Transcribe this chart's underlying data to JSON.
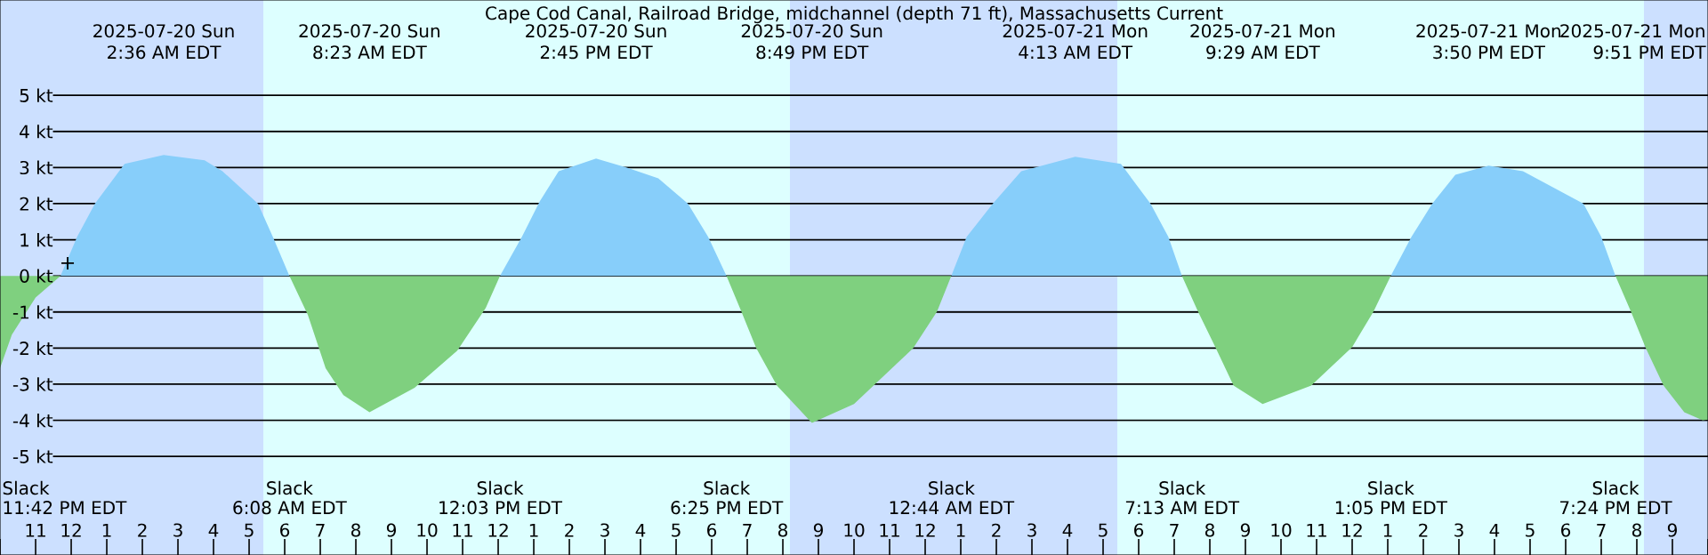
{
  "chart_data": {
    "type": "area",
    "title": "Cape Cod Canal, Railroad Bridge, midchannel (depth 71 ft), Massachusetts Current",
    "xlim": [
      "2025-07-19T22:00",
      "2025-07-21T22:00"
    ],
    "ylim": [
      -7.73,
      7.64
    ],
    "xticks": [
      {
        "value": "2025-07-19T22:00",
        "label": null
      },
      {
        "value": "2025-07-19T23:00",
        "label": "11"
      },
      {
        "value": "2025-07-20T00:00",
        "label": "12"
      },
      {
        "value": "2025-07-20T01:00",
        "label": "1"
      },
      {
        "value": "2025-07-20T02:00",
        "label": "2"
      },
      {
        "value": "2025-07-20T03:00",
        "label": "3"
      },
      {
        "value": "2025-07-20T04:00",
        "label": "4"
      },
      {
        "value": "2025-07-20T05:00",
        "label": "5"
      },
      {
        "value": "2025-07-20T06:00",
        "label": "6"
      },
      {
        "value": "2025-07-20T07:00",
        "label": "7"
      },
      {
        "value": "2025-07-20T08:00",
        "label": "8"
      },
      {
        "value": "2025-07-20T09:00",
        "label": "9"
      },
      {
        "value": "2025-07-20T10:00",
        "label": "10"
      },
      {
        "value": "2025-07-20T11:00",
        "label": "11"
      },
      {
        "value": "2025-07-20T12:00",
        "label": "12"
      },
      {
        "value": "2025-07-20T13:00",
        "label": "1"
      },
      {
        "value": "2025-07-20T14:00",
        "label": "2"
      },
      {
        "value": "2025-07-20T15:00",
        "label": "3"
      },
      {
        "value": "2025-07-20T16:00",
        "label": "4"
      },
      {
        "value": "2025-07-20T17:00",
        "label": "5"
      },
      {
        "value": "2025-07-20T18:00",
        "label": "6"
      },
      {
        "value": "2025-07-20T19:00",
        "label": "7"
      },
      {
        "value": "2025-07-20T20:00",
        "label": "8"
      },
      {
        "value": "2025-07-20T21:00",
        "label": "9"
      },
      {
        "value": "2025-07-20T22:00",
        "label": "10"
      },
      {
        "value": "2025-07-20T23:00",
        "label": "11"
      },
      {
        "value": "2025-07-21T00:00",
        "label": "12"
      },
      {
        "value": "2025-07-21T01:00",
        "label": "1"
      },
      {
        "value": "2025-07-21T02:00",
        "label": "2"
      },
      {
        "value": "2025-07-21T03:00",
        "label": "3"
      },
      {
        "value": "2025-07-21T04:00",
        "label": "4"
      },
      {
        "value": "2025-07-21T05:00",
        "label": "5"
      },
      {
        "value": "2025-07-21T06:00",
        "label": "6"
      },
      {
        "value": "2025-07-21T07:00",
        "label": "7"
      },
      {
        "value": "2025-07-21T08:00",
        "label": "8"
      },
      {
        "value": "2025-07-21T09:00",
        "label": "9"
      },
      {
        "value": "2025-07-21T10:00",
        "label": "10"
      },
      {
        "value": "2025-07-21T11:00",
        "label": "11"
      },
      {
        "value": "2025-07-21T12:00",
        "label": "12"
      },
      {
        "value": "2025-07-21T13:00",
        "label": "1"
      },
      {
        "value": "2025-07-21T14:00",
        "label": "2"
      },
      {
        "value": "2025-07-21T15:00",
        "label": "3"
      },
      {
        "value": "2025-07-21T16:00",
        "label": "4"
      },
      {
        "value": "2025-07-21T17:00",
        "label": "5"
      },
      {
        "value": "2025-07-21T18:00",
        "label": "6"
      },
      {
        "value": "2025-07-21T19:00",
        "label": "7"
      },
      {
        "value": "2025-07-21T20:00",
        "label": "8"
      },
      {
        "value": "2025-07-21T21:00",
        "label": "9"
      },
      {
        "value": "2025-07-21T22:00",
        "label": null
      }
    ],
    "yticks": [
      {
        "value": -5,
        "label": "-5 kt"
      },
      {
        "value": -4,
        "label": "-4 kt"
      },
      {
        "value": -3,
        "label": "-3 kt"
      },
      {
        "value": -2,
        "label": "-2 kt"
      },
      {
        "value": -1,
        "label": "-1 kt"
      },
      {
        "value": 0,
        "label": "0 kt"
      },
      {
        "value": 1,
        "label": "1 kt"
      },
      {
        "value": 2,
        "label": "2 kt"
      },
      {
        "value": 3,
        "label": "3 kt"
      },
      {
        "value": 4,
        "label": "4 kt"
      },
      {
        "value": 5,
        "label": "5 kt"
      }
    ],
    "grid": "y",
    "bands": [
      {
        "axis": "x",
        "from": "2025-07-19T22:00",
        "to": "2025-07-20T05:24",
        "color": "#cce0ff"
      },
      {
        "axis": "x",
        "from": "2025-07-20T20:12",
        "to": "2025-07-21T05:24",
        "color": "#cce0ff"
      },
      {
        "axis": "x",
        "from": "2025-07-21T20:12",
        "to": "2025-07-21T22:00",
        "color": "#cce0ff"
      }
    ],
    "series": [
      {
        "color": "#87cefa",
        "x": [
          "2025-07-19T23:42",
          "2025-07-20T00:10",
          "2025-07-20T00:40",
          "2025-07-20T01:30",
          "2025-07-20T02:36",
          "2025-07-20T03:45",
          "2025-07-20T04:15",
          "2025-07-20T05:15",
          "2025-07-20T05:40",
          "2025-07-20T06:08",
          "2025-07-20T09:00",
          "2025-07-20T12:03",
          "2025-07-20T12:40",
          "2025-07-20T13:10",
          "2025-07-20T13:42",
          "2025-07-20T14:45",
          "2025-07-20T15:36",
          "2025-07-20T16:30",
          "2025-07-20T17:20",
          "2025-07-20T17:54",
          "2025-07-20T18:25",
          "2025-07-20T21:00",
          "2025-07-21T00:44",
          "2025-07-21T01:10",
          "2025-07-21T01:54",
          "2025-07-21T02:42",
          "2025-07-21T04:13",
          "2025-07-21T05:30",
          "2025-07-21T06:20",
          "2025-07-21T06:50",
          "2025-07-21T07:13",
          "2025-07-21T10:00",
          "2025-07-21T13:05",
          "2025-07-21T13:40",
          "2025-07-21T14:15",
          "2025-07-21T14:54",
          "2025-07-21T15:50",
          "2025-07-21T16:48",
          "2025-07-21T18:30",
          "2025-07-21T19:00",
          "2025-07-21T19:24"
        ],
        "values": [
          0,
          1.08,
          2.0,
          3.1,
          3.35,
          3.2,
          2.9,
          2.0,
          1.08,
          0,
          null,
          0,
          1.08,
          2.06,
          2.9,
          3.25,
          3.0,
          2.7,
          2.0,
          1.08,
          0,
          null,
          0,
          1.08,
          2.0,
          2.9,
          3.3,
          3.1,
          2.0,
          1.08,
          0,
          null,
          0,
          1.08,
          2.0,
          2.8,
          3.05,
          2.9,
          2.0,
          1.08,
          0
        ]
      },
      {
        "color": "#7fd07f",
        "x": [
          "2025-07-19T22:00",
          "2025-07-19T22:20",
          "2025-07-19T23:00",
          "2025-07-19T23:42",
          "2025-07-20T03:00",
          "2025-07-20T06:08",
          "2025-07-20T06:39",
          "2025-07-20T07:09",
          "2025-07-20T07:39",
          "2025-07-20T08:23",
          "2025-07-20T09:39",
          "2025-07-20T10:51",
          "2025-07-20T11:39",
          "2025-07-20T12:03",
          "2025-07-20T15:00",
          "2025-07-20T18:25",
          "2025-07-20T18:50",
          "2025-07-20T19:15",
          "2025-07-20T19:50",
          "2025-07-20T20:49",
          "2025-07-20T22:00",
          "2025-07-20T23:40",
          "2025-07-21T00:20",
          "2025-07-21T00:44",
          "2025-07-21T04:00",
          "2025-07-21T07:13",
          "2025-07-21T07:40",
          "2025-07-21T08:10",
          "2025-07-21T08:40",
          "2025-07-21T09:29",
          "2025-07-21T10:51",
          "2025-07-21T12:00",
          "2025-07-21T12:36",
          "2025-07-21T13:05",
          "2025-07-21T16:00",
          "2025-07-21T19:24",
          "2025-07-21T19:50",
          "2025-07-21T20:15",
          "2025-07-21T20:45",
          "2025-07-21T21:20",
          "2025-07-21T21:51",
          "2025-07-21T22:00"
        ],
        "values": [
          -2.56,
          -1.63,
          -0.6,
          0,
          null,
          0,
          -1.08,
          -2.56,
          -3.3,
          -3.78,
          -3.1,
          -2.07,
          -0.89,
          0,
          null,
          0,
          -0.99,
          -2.0,
          -3.04,
          -4.07,
          -3.55,
          -2.0,
          -0.99,
          0,
          null,
          0,
          -0.99,
          -2.0,
          -3.04,
          -3.55,
          -3.04,
          -1.97,
          -0.99,
          0,
          null,
          0,
          -0.99,
          -2.0,
          -3.04,
          -3.78,
          -4.0,
          -3.98
        ]
      },
      {
        "type": "scatter",
        "color": "#000000",
        "marker": "cross",
        "x": [
          "2025-07-19T23:54"
        ],
        "values": [
          0.35
        ]
      }
    ],
    "annotations": [
      "2025-07-20 Sun",
      "2:36 AM EDT",
      "2025-07-20 Sun",
      "8:23 AM EDT",
      "2025-07-20 Sun",
      "2:45 PM EDT",
      "2025-07-20 Sun",
      "8:49 PM EDT",
      "2025-07-21 Mon",
      "4:13 AM EDT",
      "2025-07-21 Mon",
      "9:29 AM EDT",
      "2025-07-21 Mon",
      "3:50 PM EDT",
      "2025-07-21 Mon",
      "9:51 PM EDT",
      "Slack",
      "11:42 PM EDT",
      "Slack",
      "6:08 AM EDT",
      "Slack",
      "12:03 PM EDT",
      "Slack",
      "6:25 PM EDT",
      "Slack",
      "12:44 AM EDT",
      "Slack",
      "7:13 AM EDT",
      "Slack",
      "1:05 PM EDT",
      "Slack",
      "7:24 PM EDT"
    ]
  }
}
